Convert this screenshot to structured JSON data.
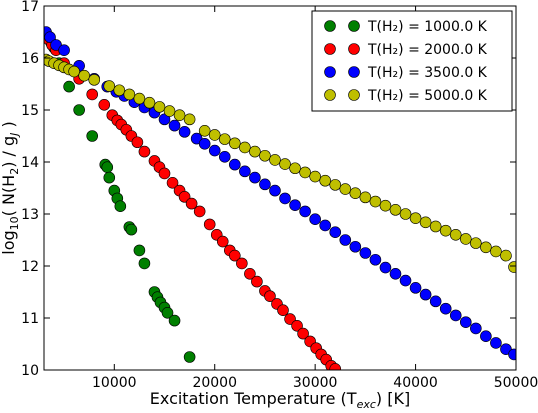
{
  "chart_data": {
    "type": "scatter",
    "title": "",
    "xlabel": "Excitation Temperature (T",
    "xlabel_sub": "exc",
    "xlabel_tail": ") [K]",
    "ylabel": "log",
    "ylabel_sub": "10",
    "ylabel_mid": "( N(H",
    "ylabel_sub2": "2",
    "ylabel_tail": ") / g",
    "ylabel_sub3": "J",
    "ylabel_end": " )",
    "xlim": [
      3000,
      50000
    ],
    "ylim": [
      10,
      17
    ],
    "xticks": [
      10000,
      20000,
      30000,
      40000,
      50000
    ],
    "xtick_labels": [
      "10000",
      "20000",
      "30000",
      "40000",
      "50000"
    ],
    "yticks": [
      10,
      11,
      12,
      13,
      14,
      15,
      16,
      17
    ],
    "ytick_labels": [
      "10",
      "11",
      "12",
      "13",
      "14",
      "15",
      "16",
      "17"
    ],
    "grid": false,
    "legend_position": "top-right",
    "series": [
      {
        "name": "T(H₂) = 1000.0 K",
        "color": "#007f00",
        "x": [
          3200,
          3400,
          3700,
          4000,
          4500,
          5500,
          6500,
          7800,
          9100,
          9300,
          9500,
          10000,
          10300,
          10600,
          11500,
          11700,
          12500,
          13000,
          14000,
          14300,
          14600,
          15000,
          15300,
          16000,
          17500
        ],
        "y": [
          16.47,
          16.4,
          16.3,
          16.2,
          15.9,
          15.45,
          15.0,
          14.5,
          13.95,
          13.9,
          13.7,
          13.45,
          13.3,
          13.15,
          12.75,
          12.7,
          12.3,
          12.05,
          11.5,
          11.4,
          11.3,
          11.2,
          11.1,
          10.95,
          10.25
        ]
      },
      {
        "name": "T(H₂) = 2000.0 K",
        "color": "#ff0000",
        "x": [
          3200,
          3500,
          3800,
          4200,
          5000,
          6500,
          7800,
          9000,
          9800,
          10300,
          10700,
          11200,
          11700,
          12300,
          13000,
          14000,
          14500,
          15000,
          15800,
          16500,
          17000,
          17700,
          18500,
          19500,
          20200,
          20800,
          21500,
          22000,
          22700,
          23500,
          24200,
          25000,
          25500,
          26200,
          26800,
          27500,
          28200,
          28800,
          29500,
          30100,
          30600,
          31100,
          31600,
          32000
        ],
        "y": [
          16.45,
          16.35,
          16.25,
          16.15,
          15.9,
          15.6,
          15.3,
          15.1,
          14.9,
          14.8,
          14.72,
          14.62,
          14.5,
          14.38,
          14.2,
          14.02,
          13.9,
          13.78,
          13.6,
          13.45,
          13.33,
          13.2,
          13.05,
          12.8,
          12.6,
          12.47,
          12.3,
          12.2,
          12.05,
          11.85,
          11.7,
          11.52,
          11.42,
          11.27,
          11.15,
          10.98,
          10.85,
          10.7,
          10.55,
          10.42,
          10.3,
          10.2,
          10.08,
          10.02
        ]
      },
      {
        "name": "T(H₂) = 3500.0 K",
        "color": "#0000ff",
        "x": [
          3200,
          3600,
          4200,
          5000,
          6500,
          8000,
          9300,
          10200,
          11000,
          12000,
          13000,
          14000,
          15000,
          16000,
          17000,
          18200,
          19000,
          20000,
          21000,
          22000,
          23000,
          24000,
          25000,
          26000,
          27000,
          28000,
          29000,
          30000,
          31000,
          32000,
          33000,
          34000,
          35000,
          36000,
          37000,
          38000,
          39000,
          40000,
          41000,
          42000,
          43000,
          44000,
          45000,
          46000,
          47000,
          48000,
          49000,
          49800
        ],
        "y": [
          16.5,
          16.4,
          16.25,
          16.15,
          15.85,
          15.6,
          15.45,
          15.35,
          15.27,
          15.15,
          15.05,
          14.95,
          14.82,
          14.7,
          14.58,
          14.45,
          14.35,
          14.22,
          14.1,
          13.95,
          13.82,
          13.7,
          13.57,
          13.45,
          13.3,
          13.17,
          13.05,
          12.9,
          12.78,
          12.65,
          12.5,
          12.37,
          12.25,
          12.12,
          11.97,
          11.85,
          11.72,
          11.58,
          11.45,
          11.32,
          11.18,
          11.05,
          10.92,
          10.8,
          10.65,
          10.52,
          10.4,
          10.3
        ]
      },
      {
        "name": "T(H₂) = 5000.0 K",
        "color": "#bfbf00",
        "x": [
          3200,
          3500,
          4000,
          4500,
          5000,
          5500,
          6000,
          7000,
          8000,
          9500,
          10500,
          11500,
          12500,
          13500,
          14500,
          15500,
          16500,
          17500,
          19000,
          20000,
          21000,
          22000,
          23000,
          24000,
          25000,
          26000,
          27000,
          28000,
          29000,
          30000,
          31000,
          32000,
          33000,
          34000,
          35000,
          36000,
          37000,
          38000,
          39000,
          40000,
          41000,
          42000,
          43000,
          44000,
          45000,
          46000,
          47000,
          48000,
          49000,
          49800
        ],
        "y": [
          15.97,
          15.94,
          15.9,
          15.86,
          15.82,
          15.78,
          15.74,
          15.66,
          15.58,
          15.46,
          15.38,
          15.3,
          15.22,
          15.14,
          15.06,
          14.98,
          14.9,
          14.82,
          14.6,
          14.52,
          14.44,
          14.36,
          14.28,
          14.2,
          14.12,
          14.04,
          13.96,
          13.88,
          13.8,
          13.72,
          13.64,
          13.56,
          13.48,
          13.4,
          13.32,
          13.24,
          13.16,
          13.08,
          13.0,
          12.92,
          12.84,
          12.76,
          12.68,
          12.6,
          12.52,
          12.44,
          12.36,
          12.28,
          12.2,
          11.98
        ]
      }
    ]
  }
}
